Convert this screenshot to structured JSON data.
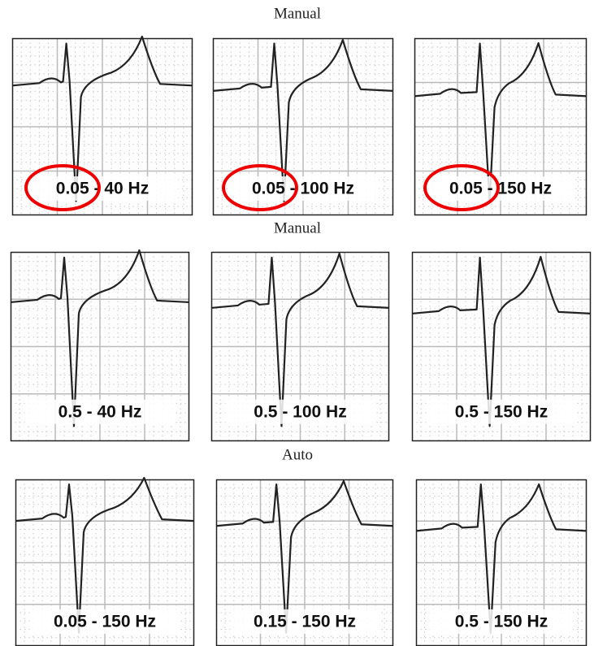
{
  "sections": [
    {
      "title": "Manual",
      "panels": [
        {
          "label": "0.05 - 40 Hz"
        },
        {
          "label": "0.05 - 100 Hz"
        },
        {
          "label": "0.05 - 150 Hz"
        }
      ]
    },
    {
      "title": "Manual",
      "panels": [
        {
          "label": "0.5 - 40 Hz"
        },
        {
          "label": "0.5 - 100 Hz"
        },
        {
          "label": "0.5 - 150 Hz"
        }
      ]
    },
    {
      "title": "Auto",
      "panels": [
        {
          "label": "0.05 - 150 Hz"
        },
        {
          "label": "0.15 - 150 Hz"
        },
        {
          "label": "0.5 - 150 Hz"
        }
      ]
    }
  ]
}
